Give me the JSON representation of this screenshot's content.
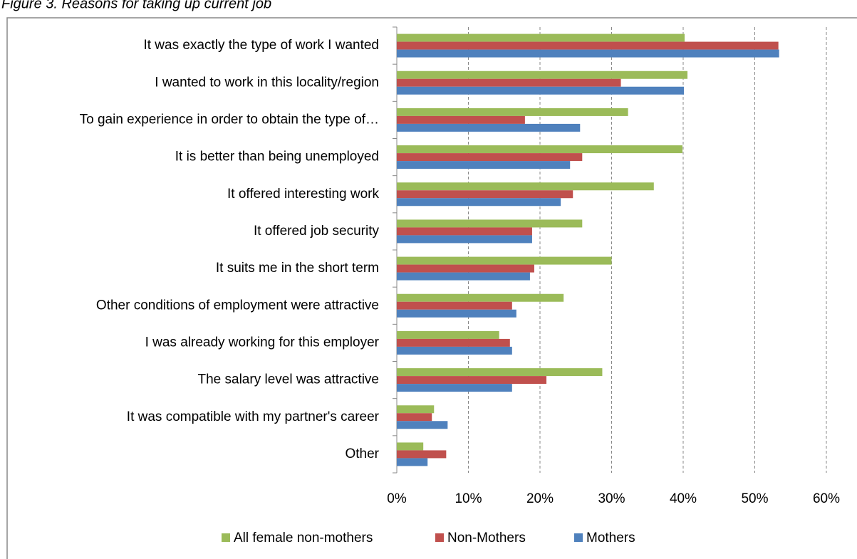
{
  "chart_data": {
    "type": "hbar",
    "title": "Figure 3. Reasons for taking up current job",
    "categories": [
      "It was exactly the type of work I wanted",
      "I wanted to work in this locality/region",
      "To gain experience in order to obtain the type of…",
      "It is better than being unemployed",
      "It offered interesting work",
      "It offered job security",
      "It suits me in the short term",
      "Other conditions of employment were attractive",
      "I was already working for this employer",
      "The salary level was attractive",
      "It was compatible with my partner's career",
      "Other"
    ],
    "series": [
      {
        "name": "All female non-mothers",
        "color": "#9bbb59",
        "values": [
          40.2,
          40.6,
          32.3,
          39.9,
          35.9,
          25.9,
          30.0,
          23.3,
          14.3,
          28.7,
          5.2,
          3.7
        ]
      },
      {
        "name": "Non-Mothers",
        "color": "#c0504d",
        "values": [
          53.3,
          31.3,
          17.9,
          25.9,
          24.6,
          18.9,
          19.2,
          16.1,
          15.8,
          20.9,
          4.9,
          6.9
        ]
      },
      {
        "name": "Mothers",
        "color": "#4f81bd",
        "values": [
          53.4,
          40.1,
          25.6,
          24.2,
          22.9,
          18.9,
          18.6,
          16.7,
          16.1,
          16.1,
          7.1,
          4.3
        ]
      }
    ],
    "xlim": [
      0,
      60
    ],
    "xticks": [
      {
        "value": 0,
        "label": "0%"
      },
      {
        "value": 10,
        "label": "10%"
      },
      {
        "value": 20,
        "label": "20%"
      },
      {
        "value": 30,
        "label": "30%"
      },
      {
        "value": 40,
        "label": "40%"
      },
      {
        "value": 50,
        "label": "50%"
      },
      {
        "value": 60,
        "label": "60%"
      }
    ],
    "grid": true,
    "legend": "bottom"
  }
}
